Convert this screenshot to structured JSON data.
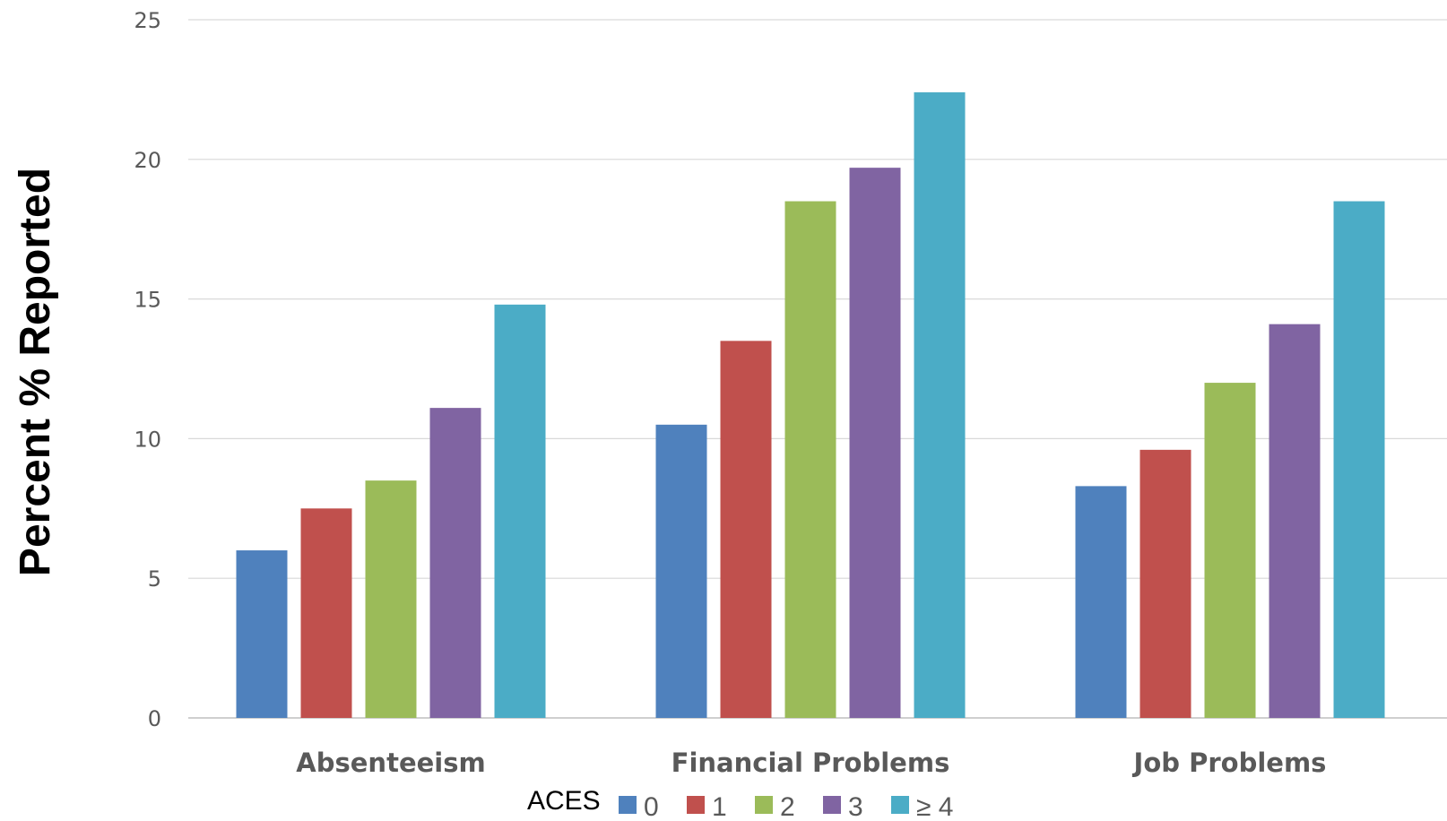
{
  "chart_data": {
    "type": "bar",
    "ylabel": "Percent % Reported",
    "ylim": [
      0,
      25
    ],
    "yticks": [
      0,
      5,
      10,
      15,
      20,
      25
    ],
    "grid": true,
    "categories": [
      "Absenteeism",
      "Financial Problems",
      "Job Problems"
    ],
    "legend": {
      "title": "ACES",
      "placement": "bottom"
    },
    "series": [
      {
        "name": "0",
        "color": "#4F81BD",
        "values": [
          6.0,
          10.5,
          8.3
        ]
      },
      {
        "name": "1",
        "color": "#C0504D",
        "values": [
          7.5,
          13.5,
          9.6
        ]
      },
      {
        "name": "2",
        "color": "#9BBB59",
        "values": [
          8.5,
          18.5,
          12.0
        ]
      },
      {
        "name": "3",
        "color": "#8064A2",
        "values": [
          11.1,
          19.7,
          14.1
        ]
      },
      {
        "name": "≥ 4",
        "color": "#4BACC6",
        "values": [
          14.8,
          22.4,
          18.5
        ]
      }
    ]
  }
}
